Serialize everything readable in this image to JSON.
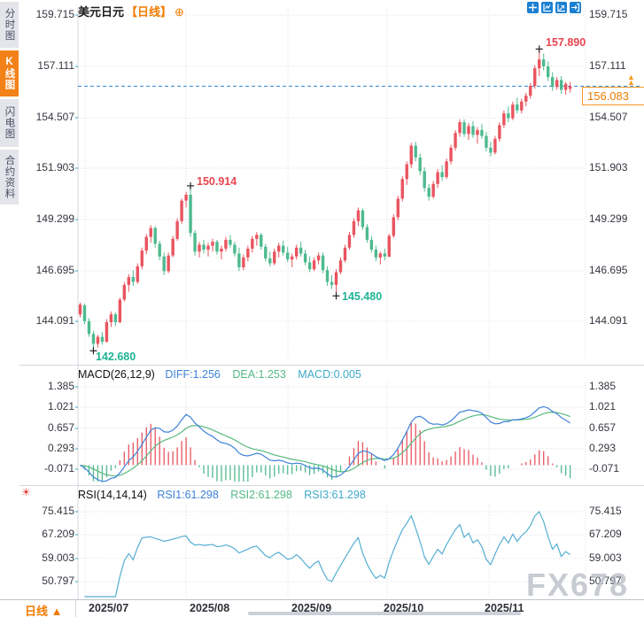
{
  "app": {
    "title_symbol": "美元日元",
    "title_period": "【日线】",
    "plus_icon": "⊕",
    "watermark": "FX678",
    "period_button": "日线 ▲"
  },
  "sidebar": {
    "tabs": [
      {
        "label": "分时图",
        "active": false
      },
      {
        "label": "K线图",
        "active": true
      },
      {
        "label": "闪电图",
        "active": false
      },
      {
        "label": "合约资料",
        "active": false
      }
    ]
  },
  "toolbar": {
    "icons": [
      "crosshair-move",
      "indicator-panel",
      "indicator-panel-alt",
      "exit-chart"
    ]
  },
  "price_axis": {
    "labels": [
      "159.715",
      "157.111",
      "154.507",
      "151.903",
      "149.299",
      "146.695",
      "144.091"
    ]
  },
  "macd_axis": {
    "labels": [
      "1.385",
      "1.021",
      "0.657",
      "0.293",
      "-0.071"
    ]
  },
  "rsi_axis": {
    "labels": [
      "75.415",
      "67.209",
      "59.003",
      "50.797"
    ]
  },
  "x_axis": {
    "labels": [
      "2025/07",
      "2025/08",
      "2025/09",
      "2025/10",
      "2025/11"
    ]
  },
  "annotations": {
    "high_main": "157.890",
    "swing_high": "150.914",
    "swing_low": "145.480",
    "low_main": "142.680",
    "last_price": "156.083"
  },
  "macd_header": {
    "name": "MACD(26,12,9)",
    "diff": "DIFF:1.256",
    "dea": "DEA:1.253",
    "macd": "MACD:0.005"
  },
  "rsi_header": {
    "name": "RSI(14,14,14)",
    "rsi1": "RSI1:61.298",
    "rsi2": "RSI2:61.298",
    "rsi3": "RSI3:61.298"
  },
  "colors": {
    "up": "#e9545f",
    "down": "#4eba8f",
    "diff_line": "#3e82d8",
    "dea_line": "#58ba7c",
    "rsi_line": "#55aed2",
    "accent_orange": "#f07c00",
    "toolbar_blue": "#1b80d2",
    "annotation_high": "#e8454e",
    "annotation_low": "#1fb394",
    "dashed_price_line": "#2f85d5",
    "grid": "#dcdde5"
  },
  "chart_data": [
    {
      "type": "candlestick",
      "symbol": "美元日元",
      "period": "日线",
      "x_labels": [
        "2025/07",
        "2025/08",
        "2025/09",
        "2025/10",
        "2025/11"
      ],
      "y_ticks": [
        159.715,
        157.111,
        154.507,
        151.903,
        149.299,
        146.695,
        144.091
      ],
      "last_price": 156.083,
      "markers": [
        {
          "index": 3,
          "price": 142.68,
          "kind": "low",
          "label": "142.680"
        },
        {
          "index": 25,
          "price": 150.914,
          "kind": "high",
          "label": "150.914"
        },
        {
          "index": 58,
          "price": 145.48,
          "kind": "low",
          "label": "145.480"
        },
        {
          "index": 104,
          "price": 157.89,
          "kind": "high",
          "label": "157.890"
        }
      ],
      "candles": [
        [
          144.45,
          145.05,
          144.3,
          144.95
        ],
        [
          144.9,
          145.0,
          143.95,
          144.1
        ],
        [
          144.1,
          144.25,
          143.3,
          143.45
        ],
        [
          143.45,
          143.6,
          142.68,
          142.95
        ],
        [
          142.95,
          143.4,
          142.75,
          143.3
        ],
        [
          143.3,
          143.55,
          142.9,
          143.05
        ],
        [
          143.05,
          144.2,
          143.0,
          144.05
        ],
        [
          144.05,
          144.6,
          143.8,
          144.45
        ],
        [
          144.45,
          144.55,
          143.85,
          144.05
        ],
        [
          144.05,
          145.3,
          144.0,
          145.2
        ],
        [
          145.2,
          146.1,
          145.1,
          145.95
        ],
        [
          145.95,
          146.5,
          145.6,
          146.35
        ],
        [
          146.35,
          146.7,
          145.9,
          146.1
        ],
        [
          146.1,
          147.05,
          146.0,
          146.9
        ],
        [
          146.9,
          147.85,
          146.75,
          147.7
        ],
        [
          147.7,
          148.55,
          147.5,
          148.4
        ],
        [
          148.4,
          149.0,
          148.1,
          148.85
        ],
        [
          148.85,
          148.95,
          147.85,
          148.05
        ],
        [
          148.05,
          148.2,
          147.2,
          147.4
        ],
        [
          147.4,
          147.6,
          146.45,
          146.65
        ],
        [
          146.65,
          147.6,
          146.55,
          147.45
        ],
        [
          147.45,
          148.45,
          147.35,
          148.3
        ],
        [
          148.3,
          149.35,
          148.2,
          149.2
        ],
        [
          149.2,
          150.35,
          149.05,
          150.25
        ],
        [
          150.25,
          150.7,
          149.9,
          150.55
        ],
        [
          150.55,
          150.914,
          148.4,
          148.6
        ],
        [
          148.6,
          148.75,
          147.45,
          147.65
        ],
        [
          147.65,
          148.15,
          147.35,
          148.0
        ],
        [
          148.0,
          148.25,
          147.55,
          147.75
        ],
        [
          147.75,
          148.1,
          147.4,
          147.95
        ],
        [
          147.95,
          148.3,
          147.65,
          148.15
        ],
        [
          148.15,
          148.25,
          147.5,
          147.65
        ],
        [
          147.65,
          147.95,
          147.25,
          147.8
        ],
        [
          147.8,
          148.4,
          147.65,
          148.25
        ],
        [
          148.25,
          148.5,
          147.85,
          148.0
        ],
        [
          148.0,
          148.15,
          147.4,
          147.55
        ],
        [
          147.55,
          147.85,
          146.65,
          146.85
        ],
        [
          146.85,
          147.5,
          146.7,
          147.35
        ],
        [
          147.35,
          147.95,
          147.15,
          147.8
        ],
        [
          147.8,
          148.45,
          147.6,
          148.3
        ],
        [
          148.3,
          148.65,
          147.95,
          148.5
        ],
        [
          148.5,
          148.6,
          147.75,
          147.9
        ],
        [
          147.9,
          148.05,
          147.15,
          147.3
        ],
        [
          147.3,
          147.65,
          146.9,
          147.05
        ],
        [
          147.05,
          147.8,
          146.95,
          147.65
        ],
        [
          147.65,
          148.1,
          147.35,
          147.95
        ],
        [
          147.95,
          148.2,
          147.45,
          147.6
        ],
        [
          147.6,
          147.9,
          147.1,
          147.25
        ],
        [
          147.25,
          147.55,
          146.85,
          147.4
        ],
        [
          147.4,
          148.0,
          147.25,
          147.85
        ],
        [
          147.85,
          148.15,
          147.4,
          147.55
        ],
        [
          147.55,
          147.75,
          146.95,
          147.1
        ],
        [
          147.1,
          147.4,
          146.6,
          146.75
        ],
        [
          146.75,
          147.35,
          146.65,
          147.2
        ],
        [
          147.2,
          147.6,
          147.0,
          147.45
        ],
        [
          147.45,
          147.6,
          146.55,
          146.7
        ],
        [
          146.7,
          146.9,
          145.9,
          146.1
        ],
        [
          146.1,
          146.45,
          145.75,
          145.95
        ],
        [
          145.95,
          146.75,
          145.48,
          146.6
        ],
        [
          146.6,
          147.35,
          146.5,
          147.2
        ],
        [
          147.2,
          148.0,
          147.1,
          147.85
        ],
        [
          147.85,
          148.65,
          147.75,
          148.5
        ],
        [
          148.5,
          149.35,
          148.35,
          149.2
        ],
        [
          149.2,
          149.9,
          148.95,
          149.75
        ],
        [
          149.75,
          149.85,
          148.75,
          148.9
        ],
        [
          148.9,
          149.05,
          148.1,
          148.25
        ],
        [
          148.25,
          148.45,
          147.6,
          147.75
        ],
        [
          147.75,
          147.95,
          147.15,
          147.35
        ],
        [
          147.35,
          147.65,
          147.0,
          147.55
        ],
        [
          147.55,
          147.8,
          147.2,
          147.4
        ],
        [
          147.4,
          148.55,
          147.35,
          148.45
        ],
        [
          148.45,
          149.55,
          148.35,
          149.4
        ],
        [
          149.4,
          150.5,
          149.25,
          150.35
        ],
        [
          150.35,
          151.5,
          150.2,
          151.35
        ],
        [
          151.35,
          152.25,
          151.05,
          152.1
        ],
        [
          152.1,
          153.2,
          151.9,
          153.05
        ],
        [
          153.05,
          153.25,
          152.25,
          152.45
        ],
        [
          152.45,
          152.65,
          151.55,
          151.75
        ],
        [
          151.75,
          151.95,
          150.7,
          150.9
        ],
        [
          150.9,
          151.1,
          150.25,
          150.45
        ],
        [
          150.45,
          151.25,
          150.35,
          151.1
        ],
        [
          151.1,
          151.85,
          150.9,
          151.7
        ],
        [
          151.7,
          152.05,
          151.25,
          151.45
        ],
        [
          151.45,
          152.4,
          151.35,
          152.25
        ],
        [
          152.25,
          153.1,
          152.1,
          152.95
        ],
        [
          152.95,
          153.85,
          152.8,
          153.7
        ],
        [
          153.7,
          154.4,
          153.5,
          154.25
        ],
        [
          154.25,
          154.4,
          153.5,
          153.65
        ],
        [
          153.65,
          154.2,
          153.35,
          154.05
        ],
        [
          154.05,
          154.3,
          153.45,
          153.6
        ],
        [
          153.6,
          154.0,
          153.15,
          153.85
        ],
        [
          153.85,
          154.15,
          153.4,
          153.55
        ],
        [
          153.55,
          153.75,
          152.75,
          152.95
        ],
        [
          152.95,
          153.25,
          152.5,
          152.7
        ],
        [
          152.7,
          153.55,
          152.6,
          153.4
        ],
        [
          153.4,
          154.25,
          153.25,
          154.1
        ],
        [
          154.1,
          154.85,
          153.95,
          154.7
        ],
        [
          154.7,
          155.05,
          154.25,
          154.45
        ],
        [
          154.45,
          155.3,
          154.35,
          155.15
        ],
        [
          155.15,
          155.5,
          154.7,
          154.85
        ],
        [
          154.85,
          155.45,
          154.7,
          155.3
        ],
        [
          155.3,
          155.75,
          155.05,
          155.6
        ],
        [
          155.6,
          156.25,
          155.45,
          156.1
        ],
        [
          156.1,
          157.15,
          155.95,
          157.0
        ],
        [
          157.0,
          157.89,
          156.6,
          157.45
        ],
        [
          157.45,
          157.75,
          156.9,
          157.1
        ],
        [
          157.1,
          157.35,
          156.35,
          156.55
        ],
        [
          156.55,
          156.8,
          155.85,
          156.05
        ],
        [
          156.05,
          156.55,
          155.9,
          156.4
        ],
        [
          156.4,
          156.6,
          155.7,
          155.9
        ],
        [
          155.9,
          156.3,
          155.65,
          156.2
        ],
        [
          155.95,
          156.3,
          155.75,
          156.083
        ]
      ]
    },
    {
      "type": "bar",
      "name": "MACD",
      "params": "26,12,9",
      "diff": 1.256,
      "dea": 1.253,
      "macd": 0.005,
      "y_ticks": [
        1.385,
        1.021,
        0.657,
        0.293,
        -0.071
      ],
      "derived_from": "candles closes (EMA12-EMA26, DEA=EMA9, bar=2*(DIFF-DEA))"
    },
    {
      "type": "line",
      "name": "RSI",
      "params": "14,14,14",
      "rsi1": 61.298,
      "rsi2": 61.298,
      "rsi3": 61.298,
      "y_ticks": [
        75.415,
        67.209,
        59.003,
        50.797
      ],
      "derived_from": "candles closes (Wilder 14)"
    }
  ]
}
